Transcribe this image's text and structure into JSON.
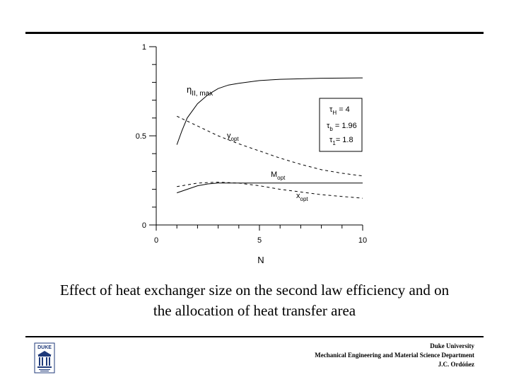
{
  "chart_data": {
    "type": "line",
    "xlabel": "N",
    "ylabel": "",
    "xlim": [
      0,
      10
    ],
    "ylim": [
      0,
      1
    ],
    "x_ticks": [
      "0",
      "5",
      "10"
    ],
    "y_ticks": [
      "0",
      "0.5",
      "1"
    ],
    "grid": false,
    "series": [
      {
        "name": "η II, max",
        "style": "solid",
        "x": [
          1,
          1.25,
          1.5,
          2,
          2.5,
          3,
          3.5,
          4,
          5,
          6,
          7,
          8,
          9,
          10
        ],
        "y": [
          0.45,
          0.53,
          0.6,
          0.68,
          0.73,
          0.765,
          0.785,
          0.795,
          0.81,
          0.817,
          0.82,
          0.823,
          0.824,
          0.825
        ]
      },
      {
        "name": "y opt",
        "style": "dashed",
        "x": [
          1,
          2,
          3,
          4,
          5,
          6,
          7,
          8,
          9,
          10
        ],
        "y": [
          0.61,
          0.555,
          0.5,
          0.455,
          0.415,
          0.375,
          0.34,
          0.31,
          0.29,
          0.275
        ]
      },
      {
        "name": "M opt",
        "style": "solid",
        "x": [
          1,
          1.5,
          2,
          2.5,
          3,
          4,
          5,
          6,
          7,
          8,
          9,
          10
        ],
        "y": [
          0.18,
          0.2,
          0.22,
          0.23,
          0.235,
          0.235,
          0.235,
          0.235,
          0.235,
          0.235,
          0.235,
          0.235
        ]
      },
      {
        "name": "x opt",
        "style": "dashed",
        "x": [
          1,
          2,
          3,
          4,
          5,
          6,
          7,
          8,
          9,
          10
        ],
        "y": [
          0.215,
          0.235,
          0.24,
          0.235,
          0.22,
          0.2,
          0.185,
          0.17,
          0.16,
          0.15
        ]
      }
    ],
    "curve_labels": {
      "eta": {
        "main": "η",
        "sub": "II, max"
      },
      "yopt": {
        "main": "y",
        "sub": "opt"
      },
      "mopt": {
        "main": "M",
        "sub": "opt"
      },
      "xopt": {
        "main": "x",
        "sub": "opt"
      }
    },
    "legend_box": {
      "placement": "right",
      "lines": [
        {
          "main": "τ",
          "sub": "H",
          "rest": " = 4"
        },
        {
          "main": "τ",
          "sub": "b",
          "rest": " = 1.96"
        },
        {
          "main": "τ",
          "sub": "1",
          "rest": "= 1.8"
        }
      ]
    }
  },
  "caption": {
    "line1": "Effect of heat exchanger size on the second law efficiency and on",
    "line2": "the allocation of heat transfer area"
  },
  "footer": {
    "line1": "Duke University",
    "line2": "Mechanical Engineering and Material Science Department",
    "line3": "J.C. Ordóñez"
  },
  "logo": {
    "text": "DUKE",
    "color": "#1f3a7a"
  }
}
